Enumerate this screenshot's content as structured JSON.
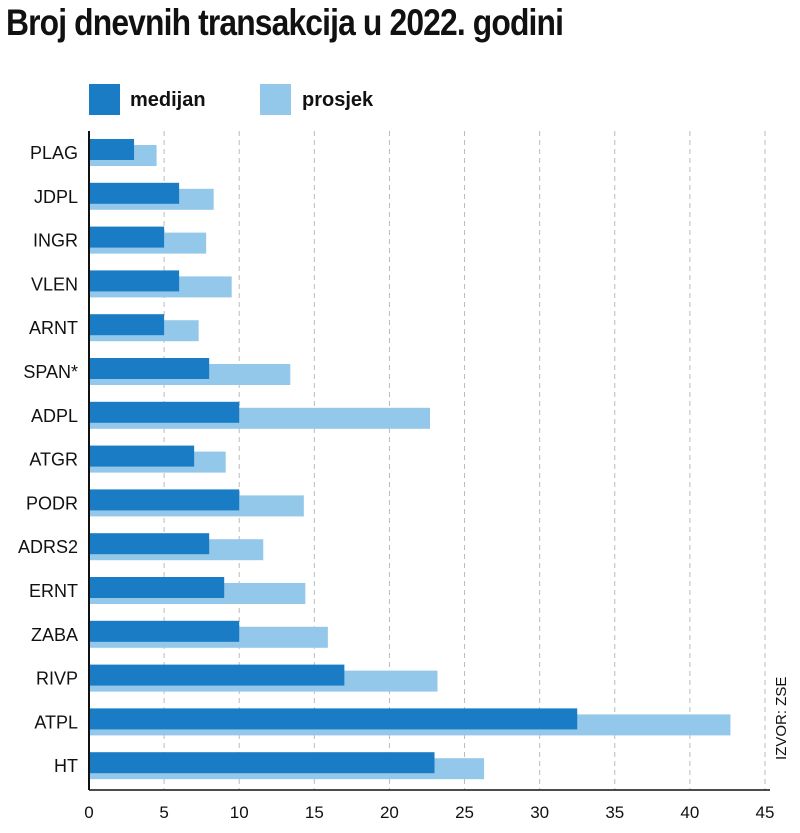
{
  "chart_data": {
    "type": "bar",
    "orientation": "horizontal",
    "title": "Broj dnevnih transakcija u 2022. godini",
    "categories": [
      "PLAG",
      "JDPL",
      "INGR",
      "VLEN",
      "ARNT",
      "SPAN*",
      "ADPL",
      "ATGR",
      "PODR",
      "ADRS2",
      "ERNT",
      "ZABA",
      "RIVP",
      "ATPL",
      "HT"
    ],
    "series": [
      {
        "name": "medijan",
        "color": "#1a7cc4",
        "values": [
          3,
          6,
          5,
          6,
          5,
          8,
          10,
          7,
          10,
          8,
          9,
          10,
          17,
          32.5,
          23
        ]
      },
      {
        "name": "prosjek",
        "color": "#94c8ea",
        "values": [
          4.5,
          8.3,
          7.8,
          9.5,
          7.3,
          13.4,
          22.7,
          9.1,
          14.3,
          11.6,
          14.4,
          15.9,
          23.2,
          42.7,
          26.3
        ]
      }
    ],
    "xlim": [
      0,
      45
    ],
    "xticks": [
      "0",
      "5",
      "10",
      "15",
      "20",
      "25",
      "30",
      "35",
      "40",
      "45"
    ],
    "grid": "vertical dashed",
    "legend": "top-left",
    "source": "IZVOR: ZSE"
  }
}
